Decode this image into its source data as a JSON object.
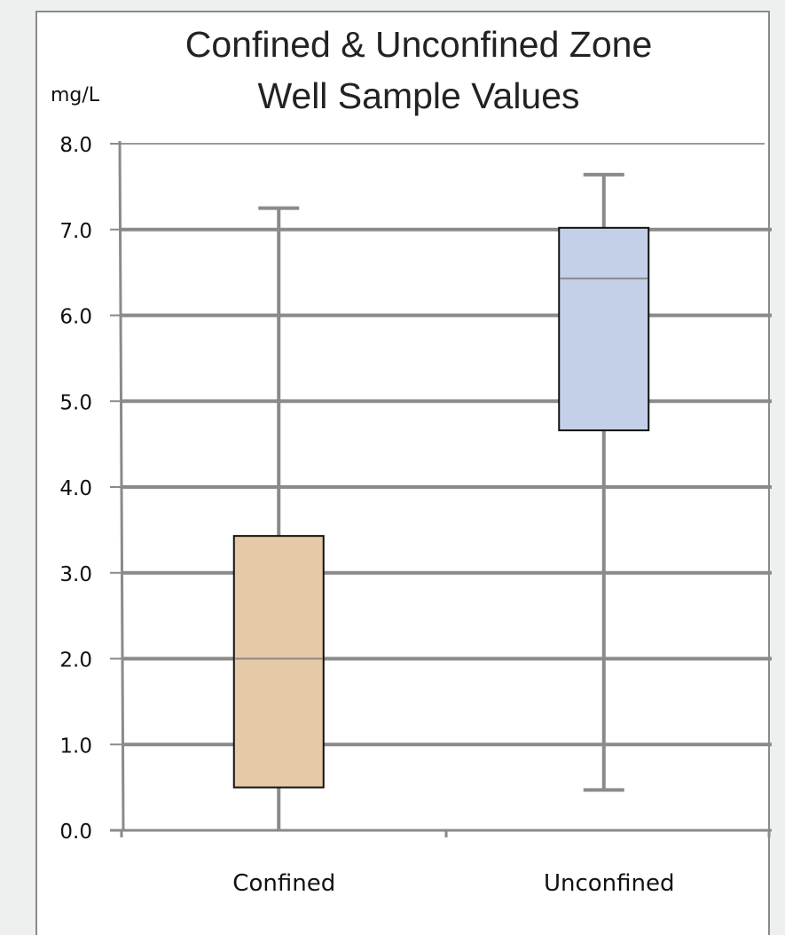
{
  "chart_data": {
    "type": "box",
    "title_lines": [
      "Confined & Unconfined Zone",
      "Well Sample Values"
    ],
    "ylabel": "mg/L",
    "ylim": [
      0,
      8
    ],
    "yticks": [
      "0.0",
      "1.0",
      "2.0",
      "3.0",
      "4.0",
      "5.0",
      "6.0",
      "7.0",
      "8.0"
    ],
    "grid": true,
    "categories": [
      "Confined",
      "Unconfined"
    ],
    "boxes": [
      {
        "category": "Confined",
        "min": 0.0,
        "q1": 0.5,
        "median": 2.0,
        "q3": 3.43,
        "max": 7.25,
        "color": "#e6c9a6"
      },
      {
        "category": "Unconfined",
        "min": 0.47,
        "q1": 4.66,
        "median": 6.43,
        "q3": 7.02,
        "max": 7.64,
        "color": "#c3d0e7"
      }
    ]
  }
}
